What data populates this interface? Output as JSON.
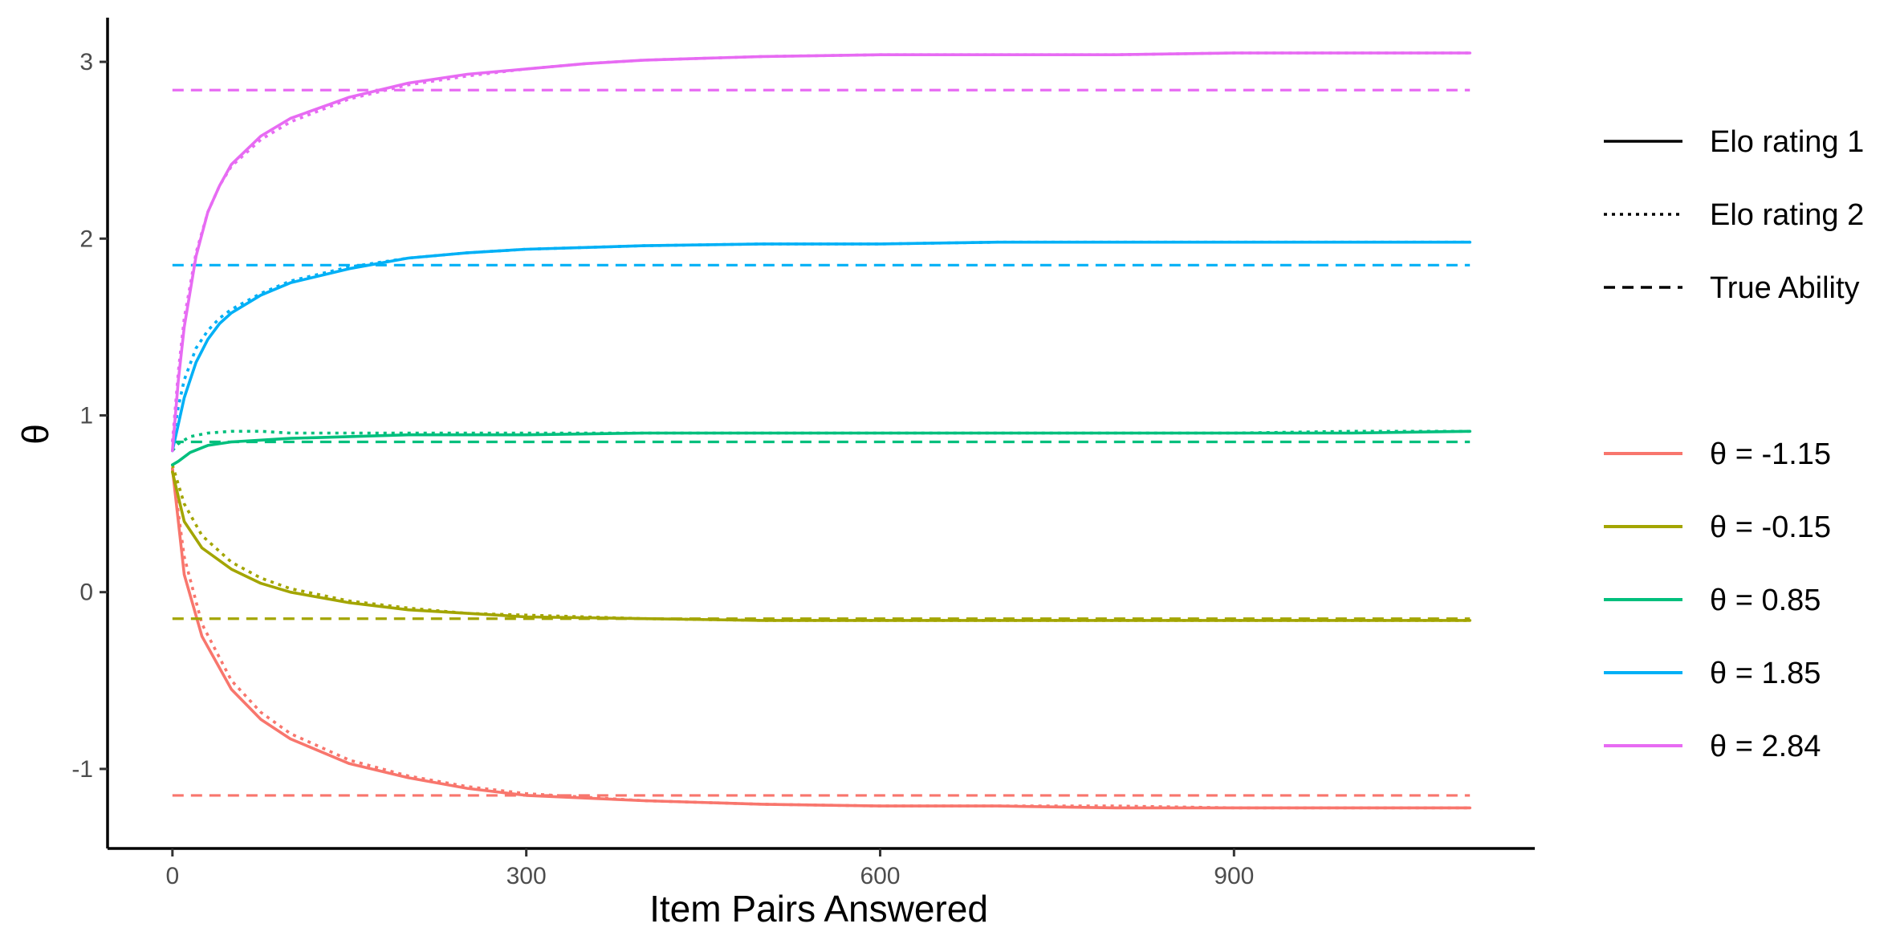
{
  "chart_data": {
    "type": "line",
    "title": "",
    "xlabel": "Item Pairs Answered",
    "ylabel": "θ",
    "xlim": [
      -55,
      1155
    ],
    "ylim": [
      -1.45,
      3.25
    ],
    "x_ticks": [
      0,
      300,
      600,
      900
    ],
    "y_ticks": [
      -1,
      0,
      1,
      2,
      3
    ],
    "grid": false,
    "legend_placement": "right",
    "linetype_legend": [
      {
        "label": "Elo rating 1",
        "dash": "solid"
      },
      {
        "label": "Elo rating 2",
        "dash": "dotted"
      },
      {
        "label": "True Ability",
        "dash": "dashed"
      }
    ],
    "series": [
      {
        "name": "θ = -1.15",
        "color": "#F8766D",
        "true_ability": -1.15,
        "elo1": {
          "x": [
            0,
            10,
            25,
            50,
            75,
            100,
            150,
            200,
            250,
            300,
            400,
            500,
            600,
            700,
            800,
            900,
            1000,
            1100
          ],
          "y": [
            0.7,
            0.1,
            -0.25,
            -0.55,
            -0.72,
            -0.83,
            -0.97,
            -1.05,
            -1.11,
            -1.15,
            -1.18,
            -1.2,
            -1.21,
            -1.21,
            -1.22,
            -1.22,
            -1.22,
            -1.22
          ]
        },
        "elo2": {
          "x": [
            0,
            10,
            25,
            50,
            75,
            100,
            150,
            200,
            250,
            300,
            400,
            500,
            600,
            700,
            800,
            900,
            1000,
            1100
          ],
          "y": [
            0.7,
            0.2,
            -0.18,
            -0.5,
            -0.68,
            -0.8,
            -0.95,
            -1.04,
            -1.1,
            -1.14,
            -1.18,
            -1.2,
            -1.21,
            -1.21,
            -1.21,
            -1.22,
            -1.22,
            -1.22
          ]
        }
      },
      {
        "name": "θ = -0.15",
        "color": "#A3A500",
        "true_ability": -0.15,
        "elo1": {
          "x": [
            0,
            10,
            25,
            50,
            75,
            100,
            150,
            200,
            250,
            300,
            400,
            500,
            600,
            700,
            800,
            900,
            1000,
            1100
          ],
          "y": [
            0.68,
            0.4,
            0.25,
            0.13,
            0.05,
            0.0,
            -0.06,
            -0.1,
            -0.12,
            -0.14,
            -0.15,
            -0.16,
            -0.16,
            -0.16,
            -0.16,
            -0.16,
            -0.16,
            -0.16
          ]
        },
        "elo2": {
          "x": [
            0,
            10,
            25,
            50,
            75,
            100,
            150,
            200,
            250,
            300,
            400,
            500,
            600,
            700,
            800,
            900,
            1000,
            1100
          ],
          "y": [
            0.72,
            0.5,
            0.32,
            0.17,
            0.08,
            0.02,
            -0.05,
            -0.09,
            -0.12,
            -0.13,
            -0.15,
            -0.16,
            -0.16,
            -0.16,
            -0.16,
            -0.16,
            -0.16,
            -0.16
          ]
        }
      },
      {
        "name": "θ = 0.85",
        "color": "#00BF7D",
        "true_ability": 0.85,
        "elo1": {
          "x": [
            0,
            5,
            15,
            30,
            50,
            75,
            100,
            150,
            200,
            300,
            400,
            500,
            600,
            700,
            800,
            900,
            1000,
            1100
          ],
          "y": [
            0.72,
            0.74,
            0.79,
            0.83,
            0.85,
            0.86,
            0.87,
            0.88,
            0.89,
            0.89,
            0.9,
            0.9,
            0.9,
            0.9,
            0.9,
            0.9,
            0.9,
            0.91
          ]
        },
        "elo2": {
          "x": [
            0,
            5,
            15,
            30,
            50,
            75,
            100,
            150,
            200,
            300,
            400,
            500,
            600,
            700,
            800,
            900,
            1000,
            1100
          ],
          "y": [
            0.8,
            0.84,
            0.88,
            0.9,
            0.91,
            0.91,
            0.9,
            0.9,
            0.9,
            0.9,
            0.9,
            0.9,
            0.9,
            0.9,
            0.9,
            0.9,
            0.91,
            0.91
          ]
        }
      },
      {
        "name": "θ = 1.85",
        "color": "#00B0F6",
        "true_ability": 1.85,
        "elo1": {
          "x": [
            0,
            5,
            10,
            20,
            30,
            40,
            50,
            75,
            100,
            150,
            200,
            250,
            300,
            400,
            500,
            600,
            700,
            800,
            900,
            1000,
            1100
          ],
          "y": [
            0.8,
            0.95,
            1.1,
            1.3,
            1.43,
            1.52,
            1.58,
            1.68,
            1.75,
            1.83,
            1.89,
            1.92,
            1.94,
            1.96,
            1.97,
            1.97,
            1.98,
            1.98,
            1.98,
            1.98,
            1.98
          ]
        },
        "elo2": {
          "x": [
            0,
            5,
            10,
            20,
            30,
            40,
            50,
            75,
            100,
            150,
            200,
            250,
            300,
            400,
            500,
            600,
            700,
            800,
            900,
            1000,
            1100
          ],
          "y": [
            0.85,
            1.05,
            1.2,
            1.38,
            1.48,
            1.55,
            1.6,
            1.69,
            1.76,
            1.84,
            1.89,
            1.92,
            1.94,
            1.96,
            1.97,
            1.97,
            1.98,
            1.98,
            1.98,
            1.98,
            1.98
          ]
        }
      },
      {
        "name": "θ = 2.84",
        "color": "#E76BF3",
        "true_ability": 2.84,
        "elo1": {
          "x": [
            0,
            5,
            10,
            20,
            30,
            40,
            50,
            75,
            100,
            150,
            200,
            250,
            300,
            350,
            400,
            500,
            600,
            700,
            800,
            900,
            1000,
            1100
          ],
          "y": [
            0.8,
            1.2,
            1.5,
            1.9,
            2.15,
            2.3,
            2.42,
            2.58,
            2.68,
            2.8,
            2.88,
            2.93,
            2.96,
            2.99,
            3.01,
            3.03,
            3.04,
            3.04,
            3.04,
            3.05,
            3.05,
            3.05
          ]
        },
        "elo2": {
          "x": [
            0,
            5,
            10,
            20,
            30,
            40,
            50,
            75,
            100,
            150,
            200,
            250,
            300,
            350,
            400,
            500,
            600,
            700,
            800,
            900,
            1000,
            1100
          ],
          "y": [
            0.85,
            1.25,
            1.55,
            1.92,
            2.15,
            2.3,
            2.41,
            2.56,
            2.66,
            2.79,
            2.87,
            2.92,
            2.96,
            2.99,
            3.01,
            3.03,
            3.04,
            3.04,
            3.04,
            3.05,
            3.05,
            3.05
          ]
        }
      }
    ]
  }
}
